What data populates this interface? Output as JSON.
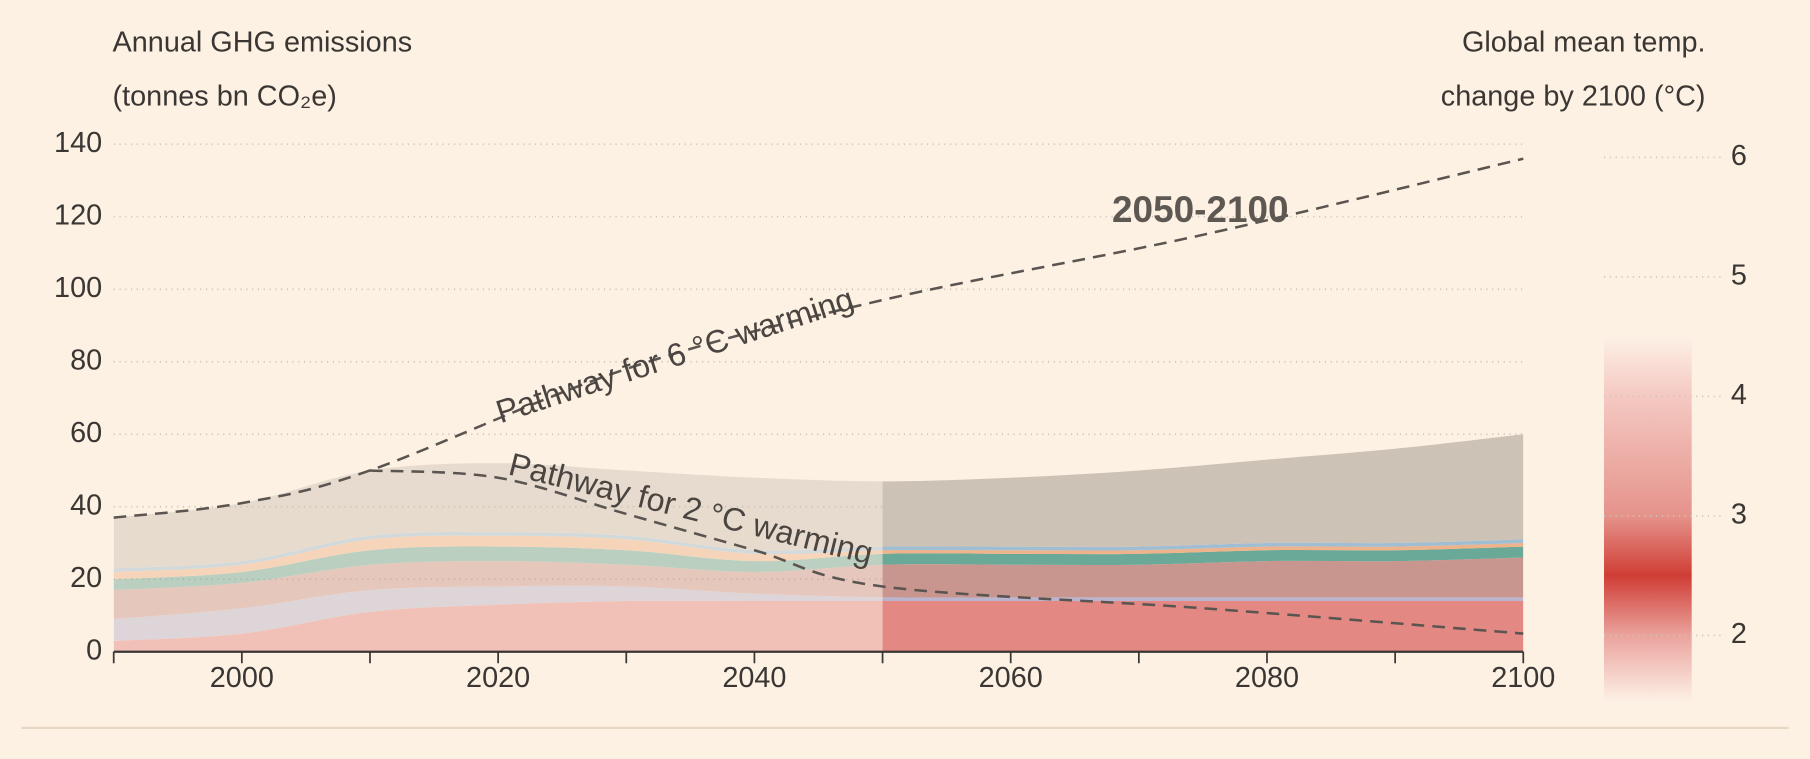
{
  "chart_data": {
    "type": "stacked_area",
    "y_title_lines": [
      "Annual GHG emissions",
      "(tonnes bn CO₂e)"
    ],
    "y2_title_lines": [
      "Global mean temp.",
      "change by 2100 (°C)"
    ],
    "x": [
      1990,
      2000,
      2010,
      2020,
      2030,
      2040,
      2050,
      2060,
      2070,
      2080,
      2090,
      2100
    ],
    "series": [
      {
        "color": "#e38883",
        "values": [
          3,
          5,
          11,
          13,
          14,
          14,
          14,
          14,
          14,
          14,
          14,
          14
        ]
      },
      {
        "color": "#b9b4cf",
        "values": [
          6,
          7,
          6,
          5,
          4,
          2,
          1,
          1,
          1,
          1,
          1,
          1
        ]
      },
      {
        "color": "#c9968f",
        "values": [
          8,
          7,
          7,
          7,
          6,
          6,
          9,
          9,
          9,
          10,
          10,
          11
        ]
      },
      {
        "color": "#6aa897",
        "values": [
          3,
          3,
          4,
          4,
          4,
          3,
          3,
          3,
          3,
          3,
          3,
          3
        ]
      },
      {
        "color": "#eeb38a",
        "values": [
          2,
          2,
          3,
          3,
          3,
          2,
          1,
          1,
          1,
          1,
          1,
          1
        ]
      },
      {
        "color": "#9fbdd3",
        "values": [
          1,
          1,
          1,
          1,
          1,
          1,
          1,
          1,
          1,
          1,
          1,
          1
        ]
      },
      {
        "color": "#cdc2b6",
        "values": [
          14,
          16,
          18,
          19,
          18,
          20,
          18,
          19,
          21,
          23,
          26,
          29
        ]
      }
    ],
    "highlight_xlim": [
      2050,
      2100
    ],
    "pathways": [
      {
        "x": [
          1990,
          2000,
          2010,
          2030,
          2050,
          2075,
          2100
        ],
        "values": [
          37,
          41,
          50,
          78,
          97,
          115,
          136
        ],
        "color": "#5a5550"
      },
      {
        "x": [
          2010,
          2020,
          2030,
          2040,
          2050,
          2075,
          2100
        ],
        "values": [
          50,
          48,
          38,
          28,
          18,
          12,
          5
        ],
        "color": "#5a5550"
      }
    ],
    "annotations": [
      "Pathway for 6 °C warming",
      "Pathway for 2 °C warming",
      "2050-2100"
    ],
    "xlim": [
      1990,
      2100
    ],
    "xticks": [
      2000,
      2020,
      2040,
      2060,
      2080,
      2100
    ],
    "xminor_ticks": [
      1990,
      2010,
      2030,
      2050,
      2070,
      2090
    ],
    "ylim": [
      0,
      140
    ],
    "yticks": [
      0,
      20,
      40,
      60,
      80,
      100,
      120,
      140
    ],
    "y2lim": [
      1.41,
      6.11
    ],
    "y2ticks": [
      2,
      3,
      4,
      5,
      6
    ],
    "colorbar": {
      "range": [
        1.45,
        4.5
      ],
      "stops": [
        {
          "value": 4.5,
          "color": "#fdf0e6"
        },
        {
          "value": 4,
          "color": "#f4c9c2"
        },
        {
          "value": 3,
          "color": "#e5938b"
        },
        {
          "value": 2.5,
          "color": "#cf3d35"
        },
        {
          "value": 2,
          "color": "#eaa39d"
        },
        {
          "value": 1.45,
          "color": "#fdf0e6"
        }
      ]
    },
    "grid": true
  }
}
